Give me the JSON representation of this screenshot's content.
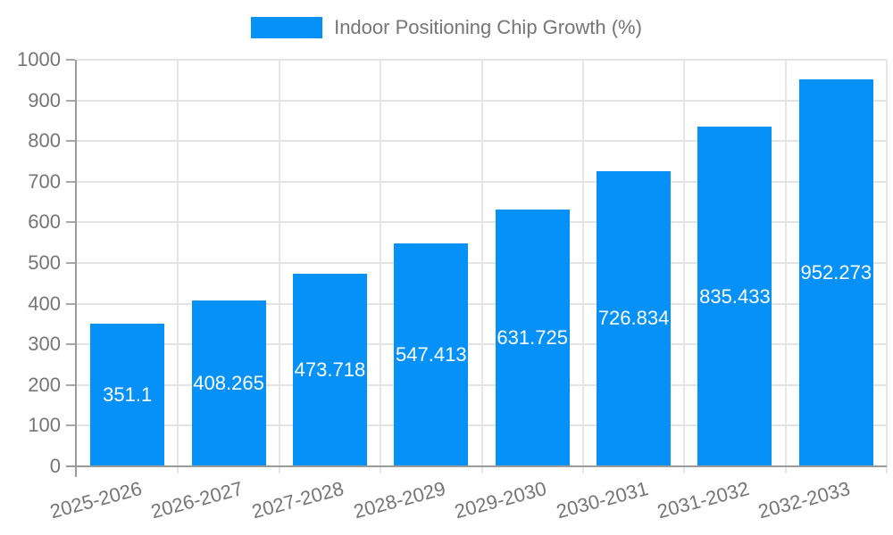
{
  "legend": {
    "label": "Indoor Positioning Chip Growth (%)"
  },
  "colors": {
    "bar": "#0591f8",
    "bar_value_text": "#ffffff",
    "axis_text": "#757575",
    "axis_line": "#9b9b9b",
    "gridline": "#e3e3e3",
    "background": "#ffffff"
  },
  "chart_data": {
    "type": "bar",
    "title": "Indoor Positioning Chip Growth (%)",
    "categories": [
      "2025-2026",
      "2026-2027",
      "2027-2028",
      "2028-2029",
      "2029-2030",
      "2030-2031",
      "2031-2032",
      "2032-2033"
    ],
    "values": [
      351.1,
      408.265,
      473.718,
      547.413,
      631.725,
      726.834,
      835.433,
      952.273
    ],
    "value_labels": [
      "351.1",
      "408.265",
      "473.718",
      "547.413",
      "631.725",
      "726.834",
      "835.433",
      "952.273"
    ],
    "xlabel": "",
    "ylabel": "",
    "ylim": [
      0,
      1000
    ],
    "ytick_step": 100,
    "ytick_labels": [
      "0",
      "100",
      "200",
      "300",
      "400",
      "500",
      "600",
      "700",
      "800",
      "900",
      "1000"
    ],
    "grid": true,
    "xtick_rotation_deg": -15,
    "legend_position": "top-center",
    "value_label_position": "inside-center"
  }
}
